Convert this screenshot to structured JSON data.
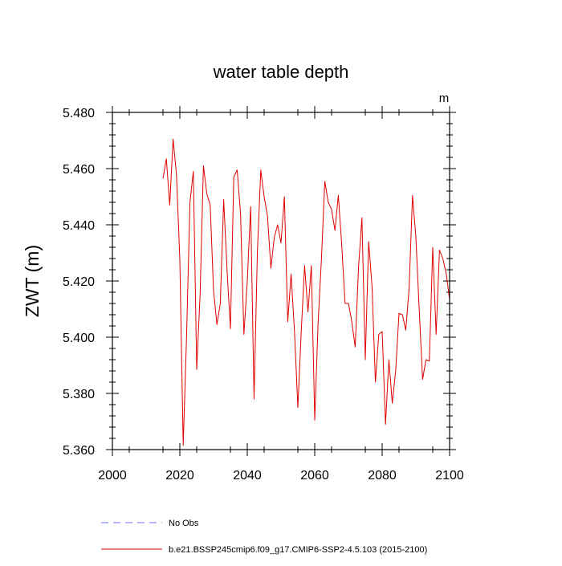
{
  "chart_data": {
    "type": "line",
    "title": "water table depth",
    "ylabel": "ZWT  (m)",
    "units_label": "m",
    "xlim": [
      2000,
      2100
    ],
    "ylim": [
      5.36,
      5.48
    ],
    "x_ticks": [
      2000,
      2020,
      2040,
      2060,
      2080,
      2100
    ],
    "y_ticks": [
      5.36,
      5.38,
      5.4,
      5.42,
      5.44,
      5.46,
      5.48
    ],
    "y_tick_labels": [
      "5.360",
      "5.380",
      "5.400",
      "5.420",
      "5.440",
      "5.460",
      "5.480"
    ],
    "grid": false,
    "legend_position": "bottom",
    "series": [
      {
        "name": "b.e21.BSSP245cmip6.f09_g17.CMIP6-SSP2-4.5.103 (2015-2100)",
        "color": "#e00000",
        "style": "solid",
        "x": [
          2015,
          2016,
          2017,
          2018,
          2019,
          2020,
          2021,
          2022,
          2023,
          2024,
          2025,
          2026,
          2027,
          2028,
          2029,
          2030,
          2031,
          2032,
          2033,
          2034,
          2035,
          2036,
          2037,
          2038,
          2039,
          2040,
          2041,
          2042,
          2043,
          2044,
          2045,
          2046,
          2047,
          2048,
          2049,
          2050,
          2051,
          2052,
          2053,
          2054,
          2055,
          2056,
          2057,
          2058,
          2059,
          2060,
          2061,
          2062,
          2063,
          2064,
          2065,
          2066,
          2067,
          2068,
          2069,
          2070,
          2071,
          2072,
          2073,
          2074,
          2075,
          2076,
          2077,
          2078,
          2079,
          2080,
          2081,
          2082,
          2083,
          2084,
          2085,
          2086,
          2087,
          2088,
          2089,
          2090,
          2091,
          2092,
          2093,
          2094,
          2095,
          2096,
          2097,
          2098,
          2099,
          2100
        ],
        "values": [
          5.4565,
          5.4635,
          5.447,
          5.4705,
          5.458,
          5.4275,
          5.3615,
          5.4005,
          5.448,
          5.459,
          5.3885,
          5.415,
          5.461,
          5.451,
          5.447,
          5.4165,
          5.4045,
          5.412,
          5.449,
          5.424,
          5.403,
          5.457,
          5.4595,
          5.444,
          5.401,
          5.42,
          5.4465,
          5.378,
          5.4305,
          5.4595,
          5.45,
          5.443,
          5.4245,
          5.4355,
          5.44,
          5.4335,
          5.45,
          5.4055,
          5.4225,
          5.402,
          5.375,
          5.402,
          5.4255,
          5.409,
          5.4255,
          5.3705,
          5.405,
          5.428,
          5.4555,
          5.448,
          5.4455,
          5.438,
          5.4505,
          5.433,
          5.412,
          5.412,
          5.4055,
          5.3965,
          5.425,
          5.4425,
          5.392,
          5.434,
          5.418,
          5.384,
          5.401,
          5.402,
          5.369,
          5.392,
          5.3765,
          5.388,
          5.4085,
          5.408,
          5.4025,
          5.4175,
          5.4505,
          5.4355,
          5.4095,
          5.385,
          5.392,
          5.3915,
          5.432,
          5.401,
          5.431,
          5.428,
          5.4225,
          5.4135
        ]
      },
      {
        "name": "No Obs",
        "color": "#6f6fff",
        "style": "dashed",
        "x": [],
        "values": []
      }
    ]
  }
}
